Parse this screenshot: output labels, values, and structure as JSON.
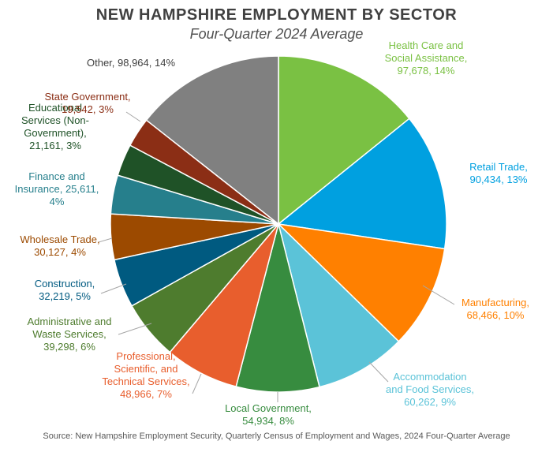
{
  "chart_data": {
    "type": "pie",
    "title": "NEW HAMPSHIRE EMPLOYMENT BY SECTOR",
    "subtitle": "Four-Quarter 2024 Average",
    "source": "Source: New Hampshire Employment Security, Quarterly Census of Employment and Wages, 2024 Four-Quarter Average",
    "slices": [
      {
        "name": "Health Care and Social Assistance",
        "value": 97678,
        "percent": 14,
        "color": "#7AC143",
        "label_lines": [
          "Health Care and",
          "Social Assistance,",
          "97,678, 14%"
        ]
      },
      {
        "name": "Retail Trade",
        "value": 90434,
        "percent": 13,
        "color": "#00A0E0",
        "label_lines": [
          "Retail Trade,",
          "90,434, 13%"
        ]
      },
      {
        "name": "Manufacturing",
        "value": 68466,
        "percent": 10,
        "color": "#FF8000",
        "label_lines": [
          "Manufacturing,",
          "68,466, 10%"
        ]
      },
      {
        "name": "Accommodation and Food Services",
        "value": 60262,
        "percent": 9,
        "color": "#5BC3D8",
        "label_lines": [
          "Accommodation",
          "and Food Services,",
          "60,262, 9%"
        ]
      },
      {
        "name": "Local Government",
        "value": 54934,
        "percent": 8,
        "color": "#378C3F",
        "label_lines": [
          "Local Government,",
          "54,934, 8%"
        ]
      },
      {
        "name": "Professional, Scientific, and Technical Services",
        "value": 48966,
        "percent": 7,
        "color": "#E85E2D",
        "label_lines": [
          "Professional,",
          "Scientific, and",
          "Technical Services,",
          "48,966, 7%"
        ]
      },
      {
        "name": "Administrative and Waste Services",
        "value": 39298,
        "percent": 6,
        "color": "#4E7C2E",
        "label_lines": [
          "Administrative and",
          "Waste Services,",
          "39,298, 6%"
        ]
      },
      {
        "name": "Construction",
        "value": 32219,
        "percent": 5,
        "color": "#005A80",
        "label_lines": [
          "Construction,",
          "32,219, 5%"
        ]
      },
      {
        "name": "Wholesale Trade",
        "value": 30127,
        "percent": 4,
        "color": "#9C4A00",
        "label_lines": [
          "Wholesale Trade,",
          "30,127, 4%"
        ]
      },
      {
        "name": "Finance and Insurance",
        "value": 25611,
        "percent": 4,
        "color": "#267F8C",
        "label_lines": [
          "Finance and",
          "Insurance, 25,611,",
          "4%"
        ]
      },
      {
        "name": "Educational Services (Non-Government)",
        "value": 21161,
        "percent": 3,
        "color": "#1F5227",
        "label_lines": [
          "Educational",
          "Services (Non-",
          "Government),",
          "21,161, 3%"
        ]
      },
      {
        "name": "State Government",
        "value": 19542,
        "percent": 3,
        "color": "#8B2E15",
        "label_lines": [
          "State Government,",
          "19,542, 3%"
        ]
      },
      {
        "name": "Other",
        "value": 98964,
        "percent": 14,
        "color": "#808080",
        "label_lines": [
          "Other, 98,964, 14%"
        ]
      }
    ]
  }
}
